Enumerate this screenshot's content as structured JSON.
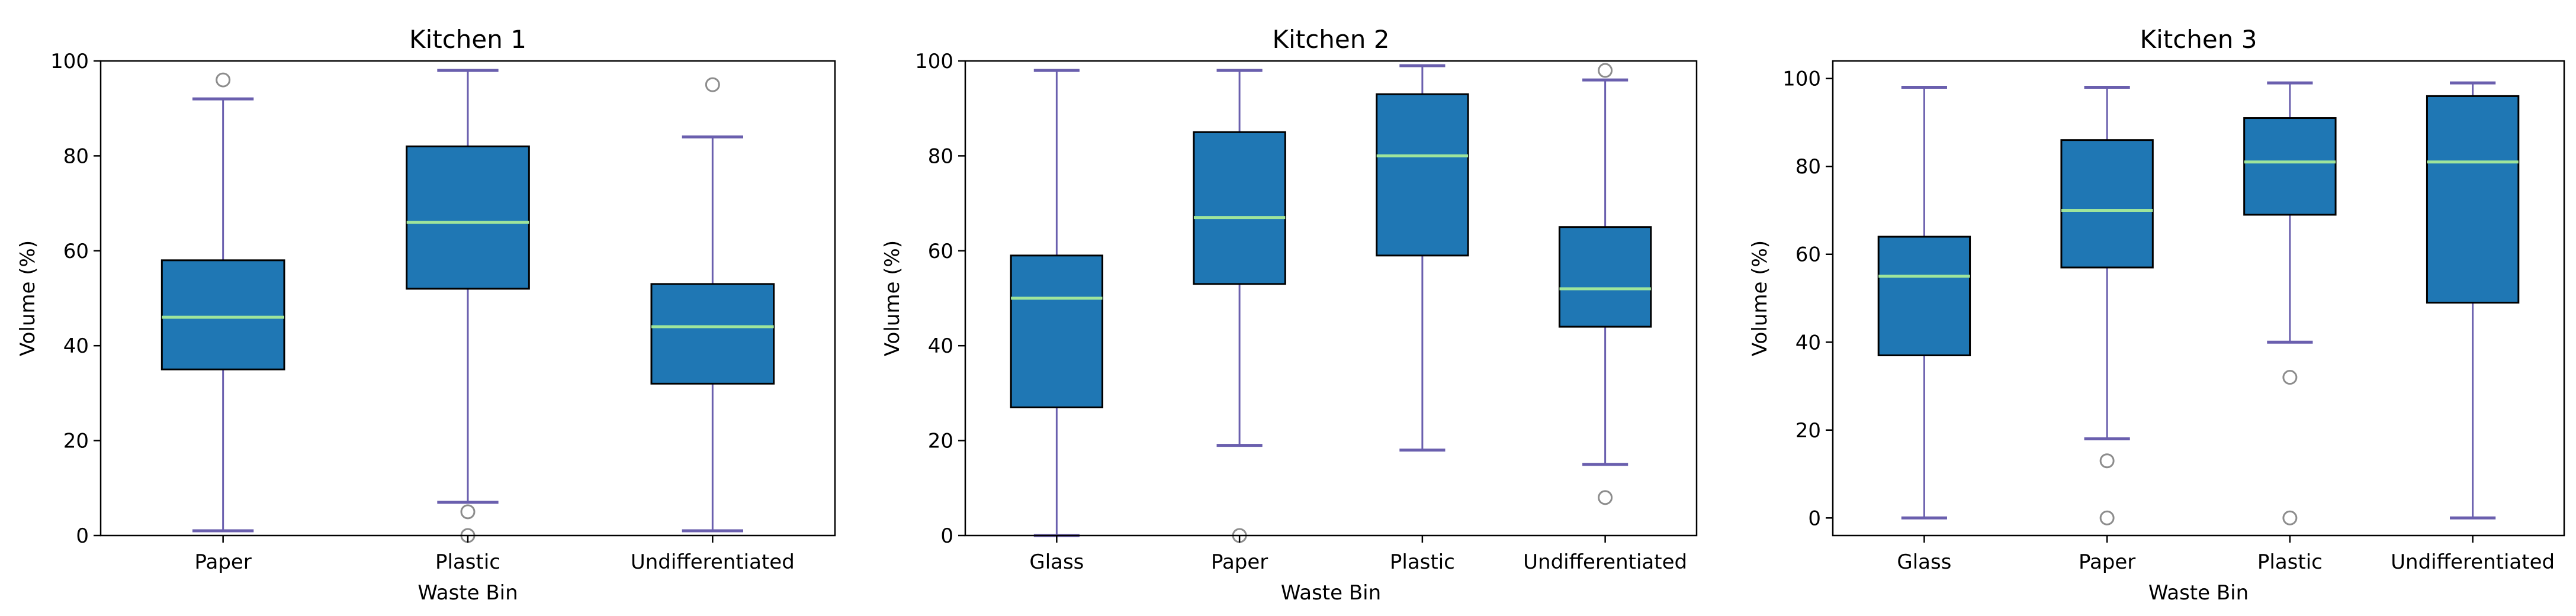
{
  "colors": {
    "box_fill": "#1f77b4",
    "box_edge": "#000000",
    "whisker": "#6a5fae",
    "median": "#9fe59b",
    "flier": "#8c8c8c",
    "axes": "#000000"
  },
  "chart_data": [
    {
      "type": "box",
      "title": "Kitchen 1",
      "xlabel": "Waste Bin",
      "ylabel": "Volume (%)",
      "ylim": [
        0,
        100
      ],
      "yticks": [
        0,
        20,
        40,
        60,
        80,
        100
      ],
      "ytick_labels": [
        "0",
        "20",
        "40",
        "60",
        "80",
        "100"
      ],
      "categories": [
        "Paper",
        "Plastic",
        "Undifferentiated"
      ],
      "boxes": [
        {
          "whislo": 1,
          "q1": 35,
          "med": 46,
          "q3": 58,
          "whishi": 92,
          "fliers": [
            96
          ]
        },
        {
          "whislo": 7,
          "q1": 52,
          "med": 66,
          "q3": 82,
          "whishi": 98,
          "fliers": [
            5,
            0
          ]
        },
        {
          "whislo": 1,
          "q1": 32,
          "med": 44,
          "q3": 53,
          "whishi": 84,
          "fliers": [
            95
          ]
        }
      ]
    },
    {
      "type": "box",
      "title": "Kitchen 2",
      "xlabel": "Waste Bin",
      "ylabel": "Volume (%)",
      "ylim": [
        0,
        100
      ],
      "yticks": [
        0,
        20,
        40,
        60,
        80,
        100
      ],
      "ytick_labels": [
        "0",
        "20",
        "40",
        "60",
        "80",
        "100"
      ],
      "categories": [
        "Glass",
        "Paper",
        "Plastic",
        "Undifferentiated"
      ],
      "boxes": [
        {
          "whislo": 0,
          "q1": 27,
          "med": 50,
          "q3": 59,
          "whishi": 98,
          "fliers": []
        },
        {
          "whislo": 19,
          "q1": 53,
          "med": 67,
          "q3": 85,
          "whishi": 98,
          "fliers": [
            0
          ]
        },
        {
          "whislo": 18,
          "q1": 59,
          "med": 80,
          "q3": 93,
          "whishi": 99,
          "fliers": []
        },
        {
          "whislo": 15,
          "q1": 44,
          "med": 52,
          "q3": 65,
          "whishi": 96,
          "fliers": [
            8,
            98
          ]
        }
      ]
    },
    {
      "type": "box",
      "title": "Kitchen 3",
      "xlabel": "Waste Bin",
      "ylabel": "Volume (%)",
      "ylim": [
        -4,
        104
      ],
      "yticks": [
        0,
        20,
        40,
        60,
        80,
        100
      ],
      "ytick_labels": [
        "0",
        "20",
        "40",
        "60",
        "80",
        "100"
      ],
      "categories": [
        "Glass",
        "Paper",
        "Plastic",
        "Undifferentiated"
      ],
      "boxes": [
        {
          "whislo": 0,
          "q1": 37,
          "med": 55,
          "q3": 64,
          "whishi": 98,
          "fliers": []
        },
        {
          "whislo": 18,
          "q1": 57,
          "med": 70,
          "q3": 86,
          "whishi": 98,
          "fliers": [
            13,
            0
          ]
        },
        {
          "whislo": 40,
          "q1": 69,
          "med": 81,
          "q3": 91,
          "whishi": 99,
          "fliers": [
            32,
            0
          ]
        },
        {
          "whislo": 0,
          "q1": 49,
          "med": 81,
          "q3": 96,
          "whishi": 99,
          "fliers": []
        }
      ]
    }
  ]
}
